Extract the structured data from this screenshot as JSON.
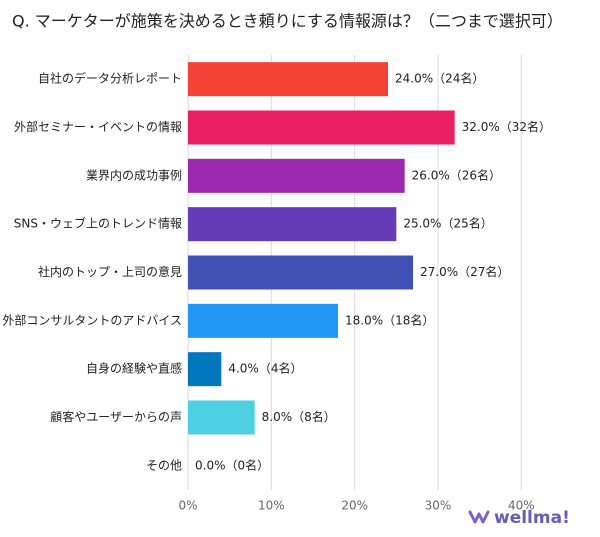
{
  "chart_data": {
    "type": "hbar",
    "title": "Q. マーケターが施策を決めるとき頼りにする情報源は？（二つまで選択可）",
    "categories": [
      "自社のデータ分析レポート",
      "外部セミナー・イベントの情報",
      "業界内の成功事例",
      "SNS・ウェブ上のトレンド情報",
      "社内のトップ・上司の意見",
      "外部コンサルタントのアドバイス",
      "自身の経験や直感",
      "顧客やユーザーからの声",
      "その他"
    ],
    "values": [
      24,
      32,
      26,
      25,
      27,
      18,
      4,
      8,
      0
    ],
    "value_labels": [
      "24.0%（24名）",
      "32.0%（32名）",
      "26.0%（26名）",
      "25.0%（25名）",
      "27.0%（27名）",
      "18.0%（18名）",
      "4.0%（4名）",
      "8.0%（8名）",
      "0.0%（0名）"
    ],
    "colors": [
      "#f44336",
      "#e91e63",
      "#9c27b0",
      "#673ab7",
      "#3f51b5",
      "#2196f3",
      "#0277bd",
      "#4dd0e1",
      "#9e9e9e"
    ],
    "xlim": [
      0,
      42
    ],
    "xticks": [
      {
        "value": 0,
        "label": "0%"
      },
      {
        "value": 10,
        "label": "10%"
      },
      {
        "value": 20,
        "label": "20%"
      },
      {
        "value": 30,
        "label": "30%"
      },
      {
        "value": 40,
        "label": "40%"
      }
    ],
    "grid": true
  },
  "brand": "wellma!"
}
